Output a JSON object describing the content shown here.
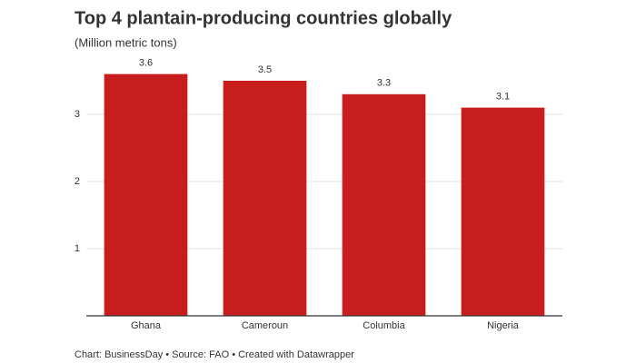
{
  "chart_data": {
    "type": "bar",
    "title": "Top 4 plantain-producing countries globally",
    "subtitle": "(Million metric tons)",
    "categories": [
      "Ghana",
      "Cameroun",
      "Columbia",
      "Nigeria"
    ],
    "values": [
      3.6,
      3.5,
      3.3,
      3.1
    ],
    "color": "#c71e1d",
    "ylim": [
      0,
      3.6
    ],
    "yticks": [
      1,
      2,
      3
    ],
    "grid": true,
    "footer": "Chart: BusinessDay • Source: FAO • Created with Datawrapper"
  }
}
